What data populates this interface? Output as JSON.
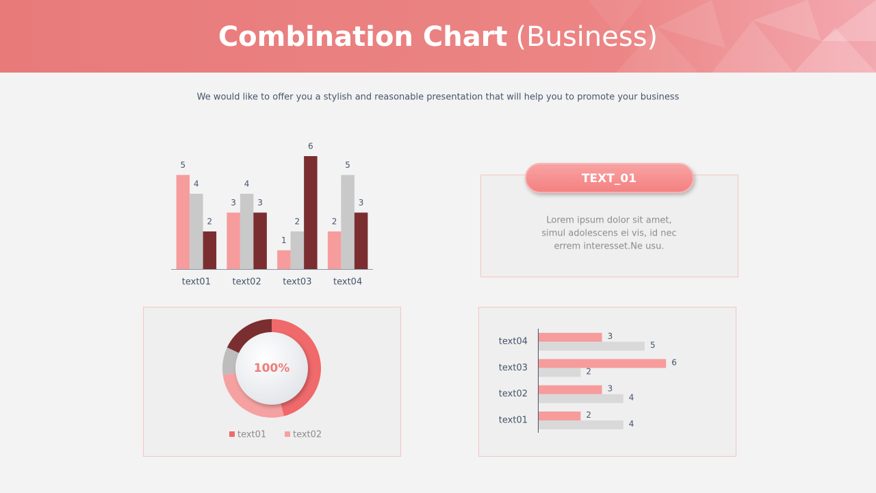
{
  "header": {
    "title_main": "Combination Chart",
    "title_suffix": "(Business)"
  },
  "subtitle": "We would like to offer you a stylish and reasonable presentation that will help you to promote your business",
  "text_box": {
    "heading": "TEXT_01",
    "lines": [
      "Lorem ipsum dolor sit amet,",
      "simul adolescens ei vis, id nec",
      "errem interesset.Ne usu."
    ]
  },
  "chart_data": [
    {
      "type": "bar",
      "categories": [
        "text01",
        "text02",
        "text03",
        "text04"
      ],
      "series": [
        {
          "color": "#f69c9c",
          "values": [
            5,
            3,
            1,
            2
          ]
        },
        {
          "color": "#c9c9c9",
          "values": [
            4,
            4,
            2,
            5
          ]
        },
        {
          "color": "#7a2e30",
          "values": [
            2,
            3,
            6,
            3
          ]
        }
      ]
    },
    {
      "type": "donut",
      "center_label": "100%",
      "categories": [
        "text01",
        "text02",
        null,
        null
      ],
      "values": [
        46,
        27,
        9,
        18
      ],
      "colors": [
        "#f0696b",
        "#f6a1a1",
        "#bdbdbd",
        "#7a2e30"
      ]
    },
    {
      "type": "barh",
      "categories": [
        "text01",
        "text02",
        "text03",
        "text04"
      ],
      "series": [
        {
          "color": "#f69c9c",
          "values": [
            2,
            3,
            6,
            3
          ]
        },
        {
          "color": "#d9d9d9",
          "values": [
            4,
            4,
            2,
            5
          ]
        }
      ]
    }
  ]
}
